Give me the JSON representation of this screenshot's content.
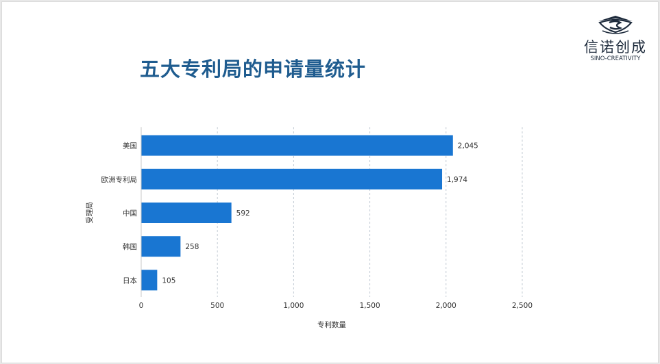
{
  "title": "五大专利局的申请量统计",
  "logo": {
    "name_cn": "信诺创成",
    "name_en": "SINO-CREATIVITY",
    "mark_icon": "sino-creativity-logo-icon",
    "color": "#1e2b3c"
  },
  "chart_data": {
    "type": "bar",
    "orientation": "horizontal",
    "categories": [
      "美国",
      "欧洲专利局",
      "中国",
      "韩国",
      "日本"
    ],
    "values": [
      2045,
      1974,
      592,
      258,
      105
    ],
    "value_labels": [
      "2,045",
      "1,974",
      "592",
      "258",
      "105"
    ],
    "xlabel": "专利数量",
    "ylabel": "受理局",
    "xlim": [
      0,
      2500
    ],
    "xticks": [
      0,
      500,
      1000,
      1500,
      2000,
      2500
    ],
    "xtick_labels": [
      "0",
      "500",
      "1,000",
      "1,500",
      "2,000",
      "2,500"
    ],
    "grid": "vertical-dashed",
    "bar_color": "#1976d2"
  }
}
